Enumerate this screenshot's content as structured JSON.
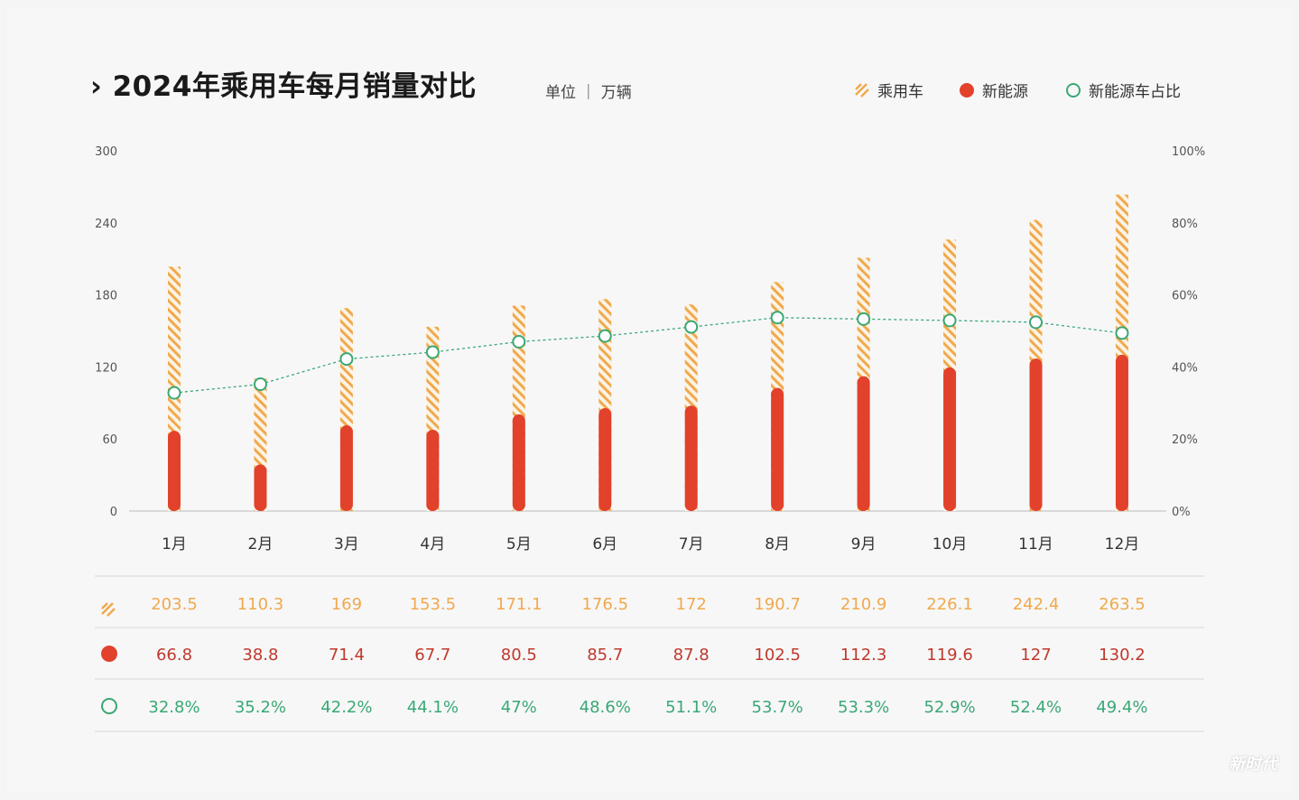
{
  "title": "2024年乘用车每月销量对比",
  "unit": "单位 ｜ 万辆",
  "watermark": "新时代",
  "colors": {
    "passenger": "#f0a94c",
    "nev": "#e2412b",
    "share": "#3aa874",
    "nev_text": "#c0392b"
  },
  "chart_data": {
    "type": "bar",
    "title": "2024年乘用车每月销量对比",
    "ylabel": "单位 ｜ 万辆",
    "categories": [
      "1月",
      "2月",
      "3月",
      "4月",
      "5月",
      "6月",
      "7月",
      "8月",
      "9月",
      "10月",
      "11月",
      "12月"
    ],
    "ylim": [
      0,
      300
    ],
    "yticks": [
      "0",
      "60",
      "120",
      "180",
      "240",
      "300"
    ],
    "y2lim": [
      0,
      100
    ],
    "y2ticks": [
      "0%",
      "20%",
      "40%",
      "60%",
      "80%",
      "100%"
    ],
    "legend_position": "top-right",
    "grid": false,
    "series": [
      {
        "name": "乘用车",
        "type": "bar-hatched",
        "values": [
          203.5,
          110.3,
          169,
          153.5,
          171.1,
          176.5,
          172,
          190.7,
          210.9,
          226.1,
          242.4,
          263.5
        ],
        "labels": [
          "203.5",
          "110.3",
          "169",
          "153.5",
          "171.1",
          "176.5",
          "172",
          "190.7",
          "210.9",
          "226.1",
          "242.4",
          "263.5"
        ]
      },
      {
        "name": "新能源",
        "type": "bar",
        "values": [
          66.8,
          38.8,
          71.4,
          67.7,
          80.5,
          85.7,
          87.8,
          102.5,
          112.3,
          119.6,
          127,
          130.2
        ],
        "labels": [
          "66.8",
          "38.8",
          "71.4",
          "67.7",
          "80.5",
          "85.7",
          "87.8",
          "102.5",
          "112.3",
          "119.6",
          "127",
          "130.2"
        ]
      },
      {
        "name": "新能源车占比",
        "type": "line",
        "axis": "right",
        "values": [
          32.8,
          35.2,
          42.2,
          44.1,
          47,
          48.6,
          51.1,
          53.7,
          53.3,
          52.9,
          52.4,
          49.4
        ],
        "labels": [
          "32.8%",
          "35.2%",
          "42.2%",
          "44.1%",
          "47%",
          "48.6%",
          "51.1%",
          "53.7%",
          "53.3%",
          "52.9%",
          "52.4%",
          "49.4%"
        ]
      }
    ]
  }
}
